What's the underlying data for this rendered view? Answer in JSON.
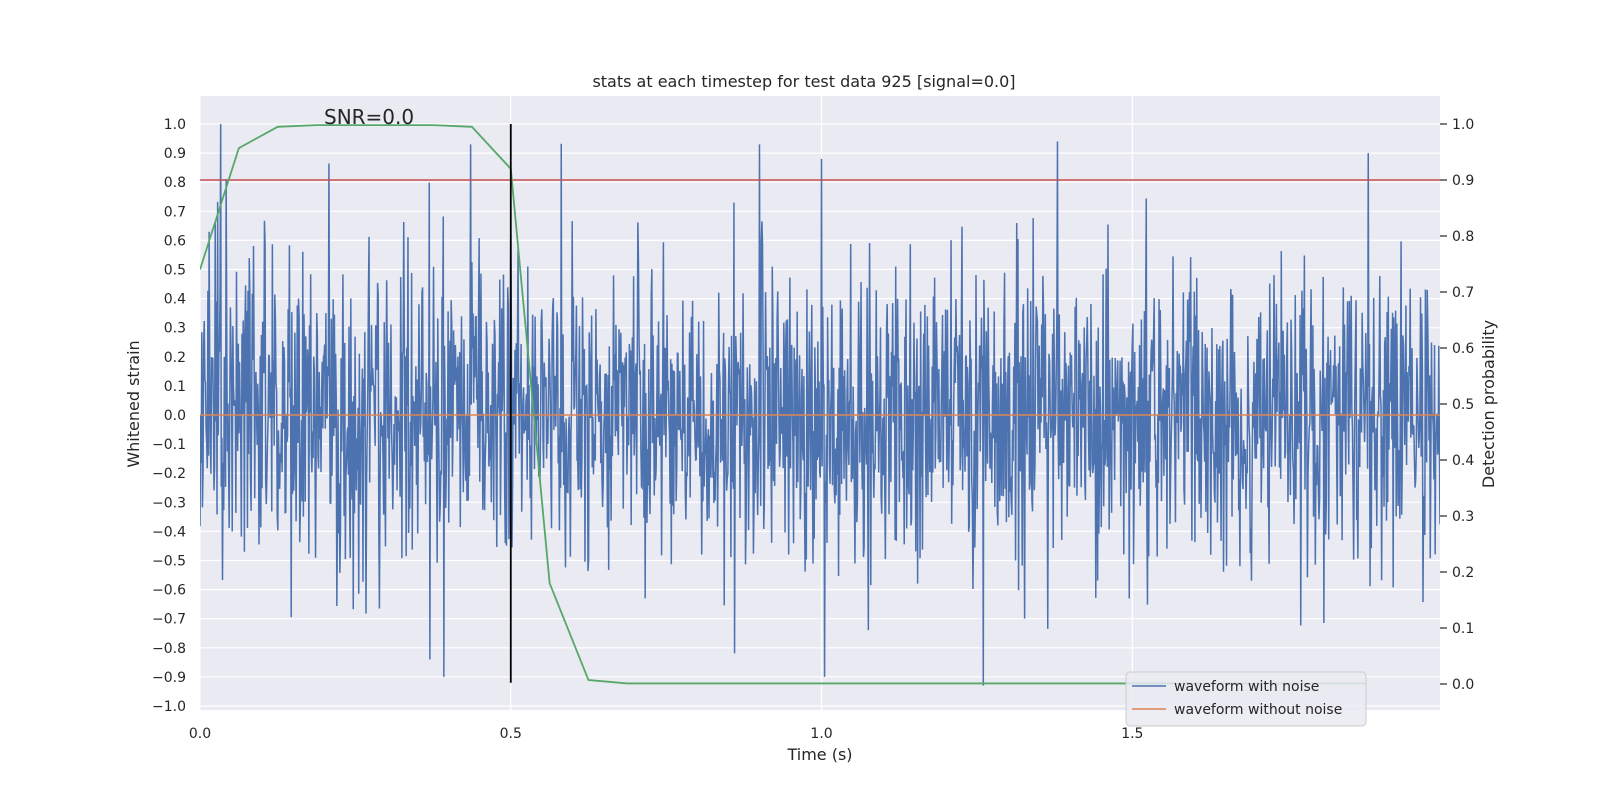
{
  "chart_data": {
    "type": "line",
    "title": "stats at each timestep for test data 925 [signal=0.0]",
    "annotation": "SNR=0.0",
    "xlabel": "Time (s)",
    "ylabel": "Whitened strain",
    "y2label": "Detection probability",
    "xlim": [
      0.0,
      1.995
    ],
    "ylim": [
      -1.05,
      1.1
    ],
    "y2lim": [
      -0.05,
      1.05
    ],
    "xticks": [
      "0.0",
      "0.5",
      "1.0",
      "1.5"
    ],
    "yticks": [
      "1.0",
      "0.9",
      "0.8",
      "0.7",
      "0.6",
      "0.5",
      "0.4",
      "0.3",
      "0.2",
      "0.1",
      "0.0",
      "−0.1",
      "−0.2",
      "−0.3",
      "−0.4",
      "−0.5",
      "−0.6",
      "−0.7",
      "−0.8",
      "−0.9",
      "−1.0"
    ],
    "y2ticks": [
      "1.0",
      "0.9",
      "0.8",
      "0.7",
      "0.6",
      "0.5",
      "0.4",
      "0.3",
      "0.2",
      "0.1",
      "0.0"
    ],
    "grid": true,
    "legend_position": "bottom-right",
    "colors": {
      "noise": "#4c72b0",
      "clean": "#dd8452",
      "probability": "#55a868",
      "threshold": "#c44e52",
      "marker": "#000000",
      "plot_bg": "#eaeaf2"
    },
    "series": [
      {
        "name": "waveform with noise",
        "generated": "random-noise",
        "x_range": [
          0.0,
          1.995
        ],
        "y_range": [
          -0.93,
          1.0
        ],
        "sample_count": 2040,
        "notable_spikes": [
          {
            "x": 0.033,
            "y": 1.0
          },
          {
            "x": 0.435,
            "y": 0.93
          },
          {
            "x": 0.9,
            "y": 0.93
          },
          {
            "x": 1.0,
            "y": 0.88
          },
          {
            "x": 1.38,
            "y": 0.94
          },
          {
            "x": 1.88,
            "y": 0.9
          },
          {
            "x": 1.26,
            "y": -0.93
          },
          {
            "x": 1.005,
            "y": -0.9
          },
          {
            "x": 0.37,
            "y": -0.84
          }
        ]
      },
      {
        "name": "waveform without noise",
        "x": [
          0.0,
          1.995
        ],
        "y": [
          0.0,
          0.0
        ]
      },
      {
        "axis": "right",
        "x": [
          0.0,
          0.0625,
          0.125,
          0.1875,
          0.25,
          0.3125,
          0.375,
          0.4375,
          0.5,
          0.5625,
          0.625,
          0.6875,
          0.75,
          0.8125,
          0.875,
          0.9375,
          1.0,
          1.0625,
          1.125,
          1.1875,
          1.25,
          1.3125,
          1.375,
          1.4375,
          1.5,
          1.5625,
          1.625,
          1.6875,
          1.75,
          1.8125,
          1.875
        ],
        "y": [
          0.74,
          0.957,
          0.995,
          0.998,
          0.998,
          0.998,
          0.998,
          0.995,
          0.92,
          0.18,
          0.007,
          0.001,
          0.001,
          0.001,
          0.001,
          0.001,
          0.001,
          0.001,
          0.001,
          0.001,
          0.001,
          0.001,
          0.001,
          0.001,
          0.001,
          0.001,
          0.001,
          0.001,
          0.001,
          0.001,
          0.001
        ]
      }
    ],
    "threshold": {
      "axis": "right",
      "y": 0.9
    },
    "vertical_marker": {
      "x": 0.5,
      "y_from": 1.0,
      "y_to": -0.92
    }
  }
}
